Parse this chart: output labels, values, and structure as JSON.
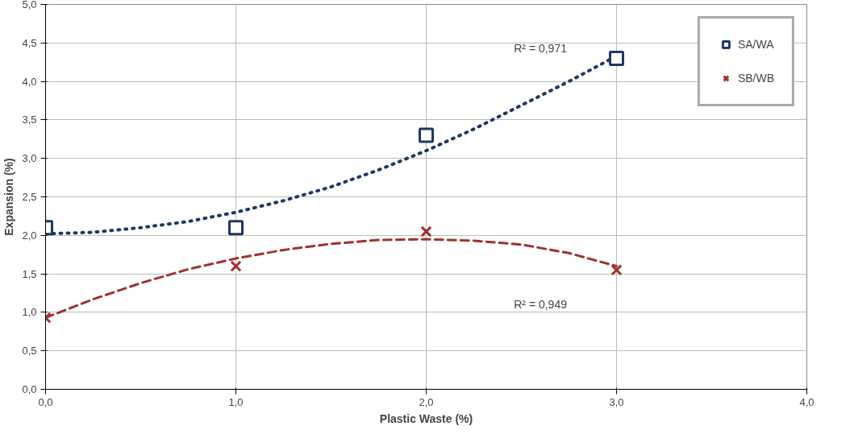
{
  "chart_data": {
    "type": "scatter",
    "xlabel": "Plastic Waste (%)",
    "ylabel": "Expansion (%)",
    "xlim": [
      0,
      4
    ],
    "ylim": [
      0,
      5
    ],
    "xticks": [
      {
        "value": 0,
        "label": "0,0"
      },
      {
        "value": 1,
        "label": "1,0"
      },
      {
        "value": 2,
        "label": "2,0"
      },
      {
        "value": 3,
        "label": "3,0"
      },
      {
        "value": 4,
        "label": "4,0"
      }
    ],
    "yticks": [
      {
        "value": 0,
        "label": "0,0"
      },
      {
        "value": 0.5,
        "label": "0,5"
      },
      {
        "value": 1,
        "label": "1,0"
      },
      {
        "value": 1.5,
        "label": "1,5"
      },
      {
        "value": 2,
        "label": "2,0"
      },
      {
        "value": 2.5,
        "label": "2,5"
      },
      {
        "value": 3,
        "label": "3,0"
      },
      {
        "value": 3.5,
        "label": "3,5"
      },
      {
        "value": 4,
        "label": "4,0"
      },
      {
        "value": 4.5,
        "label": "4,5"
      },
      {
        "value": 5,
        "label": "5,0"
      }
    ],
    "grid": true,
    "legend": "top right",
    "series": [
      {
        "name": "SA/WA",
        "marker": "square",
        "color": "#1f3864",
        "x": [
          0,
          1,
          2,
          3
        ],
        "values": [
          2.1,
          2.1,
          3.3,
          4.3
        ]
      },
      {
        "name": "SB/WB",
        "marker": "cross",
        "color": "#a0322f",
        "x": [
          0,
          1,
          2,
          3
        ],
        "values": [
          0.93,
          1.6,
          2.05,
          1.55
        ]
      },
      {
        "type": "line",
        "line_style": "dotted",
        "color": "#1f3864",
        "x": [
          0,
          0.25,
          0.5,
          0.75,
          1,
          1.25,
          1.5,
          1.75,
          2,
          2.25,
          2.5,
          2.75,
          3
        ],
        "values": [
          2.02,
          2.04,
          2.1,
          2.18,
          2.3,
          2.45,
          2.63,
          2.85,
          3.1,
          3.38,
          3.69,
          4.0,
          4.33
        ]
      },
      {
        "type": "line",
        "line_style": "dashed",
        "color": "#a0322f",
        "x": [
          0,
          0.25,
          0.5,
          0.75,
          1,
          1.25,
          1.5,
          1.75,
          2,
          2.25,
          2.5,
          2.75,
          3
        ],
        "values": [
          0.93,
          1.17,
          1.38,
          1.56,
          1.7,
          1.81,
          1.89,
          1.94,
          1.95,
          1.93,
          1.88,
          1.77,
          1.6
        ]
      }
    ],
    "annotations": [
      "R² = 0,971",
      "R² = 0,949"
    ]
  }
}
